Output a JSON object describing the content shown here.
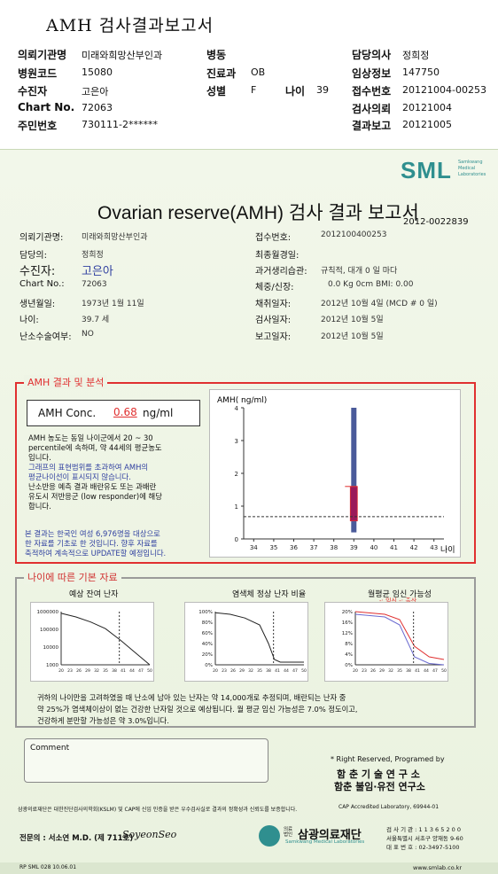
{
  "header": {
    "title": "AMH 검사결과보고서",
    "fields": [
      {
        "label": "의뢰기관명",
        "value": "미래와희망산부인과"
      },
      {
        "label": "병원코드",
        "value": "15080"
      },
      {
        "label": "수진자",
        "value": "고은아"
      },
      {
        "label": "Chart No.",
        "value": "72063"
      },
      {
        "label": "주민번호",
        "value": "730111-2******"
      }
    ],
    "mid": [
      {
        "label": "병동",
        "value": ""
      },
      {
        "label": "진료과",
        "value": "OB"
      },
      {
        "label": "성별",
        "value": "F"
      }
    ],
    "age_label": "나이",
    "age_value": "39",
    "right": [
      {
        "label": "담당의사",
        "value": "정희정"
      },
      {
        "label": "임상정보",
        "value": "147750"
      },
      {
        "label": "접수번호",
        "value": "20121004-00253"
      },
      {
        "label": "검사의뢰",
        "value": "20121004"
      },
      {
        "label": "결과보고",
        "value": "20121005"
      }
    ]
  },
  "report": {
    "logo": "SML",
    "logo_sub": [
      "Samkwang",
      "Medical",
      "Laboratories"
    ],
    "title": "Ovarian reserve(AMH) 검사 결과 보고서",
    "number": "2012-0022839",
    "left_fields": [
      {
        "label": "의뢰기관명:",
        "value": "미래와희망산부인과"
      },
      {
        "label": "담당의:",
        "value": "정희정"
      },
      {
        "label": "수진자:",
        "value": "고은아"
      },
      {
        "label": "Chart No.:",
        "value": "72063"
      },
      {
        "label": "생년월일:",
        "value": "1973년 1월 11일"
      },
      {
        "label": "나이:",
        "value": "39.7 세"
      },
      {
        "label": "난소수술여부:",
        "value": "NO"
      }
    ],
    "right_fields": [
      {
        "label": "접수번호:",
        "value": "2012100400253"
      },
      {
        "label": "최종월경일:",
        "value": ""
      },
      {
        "label": "과거생리습관:",
        "value": "규칙적,  대개     0  일 마다"
      },
      {
        "label": "체중/신장:",
        "value": "0.0  Kg          0cm      BMI:    0.00"
      },
      {
        "label": "채취일자:",
        "value": "2012년  10월  4일    (MCD #   0  일)"
      },
      {
        "label": "검사일자:",
        "value": "2012년  10월  5일"
      },
      {
        "label": "보고일자:",
        "value": "2012년  10월  5일"
      }
    ],
    "amh_section_title": "AMH 결과 및 분석",
    "amh_conc_label": "AMH Conc.",
    "amh_conc_value": "0.68",
    "amh_conc_unit": "ng/ml",
    "analysis_lines": [
      "AMH 농도는 동일 나이군에서    20 ~  30",
      "percentile에 속하며,  약   44세의 평균농도",
      "입니다.",
      "그래프의 표현범위를 초과하여 AMH의",
      "평균나이선이 표시되지 않습니다.",
      "난소반응 예측 결과 배란유도 또는 과배란",
      "유도시 저반응군 (low responder)에 해당",
      "합니다."
    ],
    "notice_lines": [
      "본 결과는 한국인 여성 6,976명을 대상으로",
      "한 자료를 기초로 한 것입니다. 향후 자료를",
      "축적하여 계속적으로 UPDATE할 예정입니다."
    ],
    "basic_section_title": "나이에 따른 기본 자료",
    "mini_titles": [
      "예상 잔여 난자",
      "염색체 정상 난자 비율",
      "월평균 임신 가능성"
    ],
    "mini3_legend": "-: 임신 -: 출산",
    "summary_lines": [
      "귀하의 나이만을 고려하였을 때 난소에 남아 있는 난자는   약    14,000개로 추정되며, 배란되는 난자 중",
      "약  25%가 염색체이상이 없는 건강한 난자일 것으로 예상됩니다. 월 평균 임신 가능성은 7.0% 정도이고,",
      "건강하게 분만할 가능성은 약  3.0%입니다."
    ],
    "comment_label": "Comment",
    "program_credit": "* Right Reserved, Programed by",
    "inst1": "함 춘  기 술  연 구 소",
    "inst2": "함춘 불임·유전 연구소",
    "cert_text": "삼광의료재단은 대한진단검사의학회(KSLM) 및 CAP에 신임 인증을 받은 우수검사실로 결과의 정확성과 신뢰도를 보증합니다.",
    "cap_text": "CAP  Accredited  Laboratory,   69944-01",
    "specialist": "전문의 : 서소연 M.D. (제 711호)",
    "signature": "SoyeonSeo",
    "foundation_prefix": "의료법인",
    "foundation": "삼광의료재단",
    "foundation_en": "Samkwang Medical Laboratories",
    "inst_no": "검 사 기 관 : 1 1 3 6 5 2 0 0",
    "address": "서울특별시 서초구 양재동 9-60",
    "phone": "대 표 번 호 : 02-3497-5100",
    "form_code": "RP  SML  028  10.06.01",
    "website": "www.smlab.co.kr"
  },
  "chart_data": [
    {
      "type": "box",
      "title": "AMH( ng/ml)",
      "xlabel": "나이",
      "x_ticks": [
        34,
        35,
        36,
        37,
        38,
        39,
        40,
        41,
        42,
        43
      ],
      "y_ticks": [
        0,
        1,
        2,
        3,
        4
      ],
      "ylim": [
        0,
        4
      ],
      "box": {
        "x": 39,
        "whisker_low": 0.2,
        "whisker_high": 4.0,
        "q1": 0.55,
        "q3": 1.6
      },
      "reference_line": 0.68
    },
    {
      "type": "line",
      "title": "예상 잔여 난자",
      "y_scale": "log",
      "y_ticks": [
        1000,
        10000,
        100000,
        1000000
      ],
      "x_ticks": [
        20,
        23,
        26,
        29,
        32,
        35,
        38,
        41,
        44,
        47,
        50
      ],
      "x": [
        20,
        25,
        30,
        35,
        40,
        45,
        50
      ],
      "y": [
        800000,
        500000,
        260000,
        110000,
        25000,
        5000,
        1000
      ],
      "marker_x": 39.7
    },
    {
      "type": "line",
      "title": "염색체 정상 난자 비율",
      "y_ticks_label": [
        "0%",
        "20%",
        "40%",
        "60%",
        "80%",
        "100%"
      ],
      "x_ticks": [
        20,
        23,
        26,
        29,
        32,
        35,
        38,
        41,
        44,
        47,
        50
      ],
      "x": [
        20,
        25,
        30,
        35,
        38,
        40,
        42,
        50
      ],
      "y": [
        98,
        95,
        88,
        75,
        40,
        10,
        5,
        5
      ],
      "marker_x": 39.7
    },
    {
      "type": "line",
      "title": "월평균 임신 가능성",
      "y_ticks_label": [
        "0%",
        "4%",
        "8%",
        "12%",
        "16%",
        "20%"
      ],
      "x_ticks": [
        20,
        23,
        26,
        29,
        32,
        35,
        38,
        41,
        44,
        47,
        50
      ],
      "series": [
        {
          "name": "임신",
          "x": [
            20,
            30,
            35,
            40,
            45,
            50
          ],
          "y": [
            20,
            19,
            17,
            7,
            3,
            2
          ]
        },
        {
          "name": "출산",
          "x": [
            20,
            30,
            35,
            40,
            45,
            50
          ],
          "y": [
            19,
            18,
            15,
            3,
            0.5,
            0
          ]
        }
      ],
      "marker_x": 39.7
    }
  ],
  "colors": {
    "red": "#e03030",
    "teal": "#2f8f8f",
    "blue": "#3040a0",
    "box": "#9a1a5a",
    "bar": "#4a5a9a"
  }
}
